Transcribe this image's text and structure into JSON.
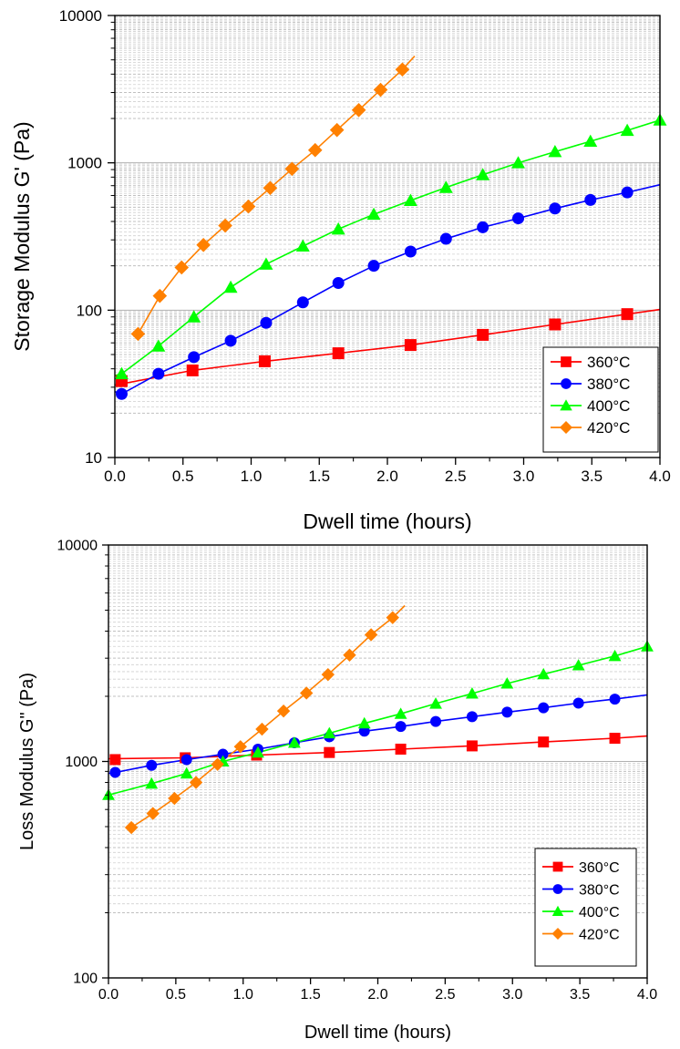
{
  "chart_data": [
    {
      "type": "line",
      "xlabel": "Dwell time (hours)",
      "ylabel": "Storage Modulus G' (Pa)",
      "xlim": [
        0,
        4.0
      ],
      "ylim": [
        10,
        10000
      ],
      "yscale": "log",
      "xticks": [
        "0.0",
        "0.5",
        "1.0",
        "1.5",
        "2.0",
        "2.5",
        "3.0",
        "3.5",
        "4.0"
      ],
      "yticks": [
        "10",
        "100",
        "1000",
        "10000"
      ],
      "grid": "horizontal minor dashed, major solid",
      "legend_position": "bottom-right",
      "series": [
        {
          "name": "360°C",
          "color": "#ff0000",
          "marker": "square",
          "x": [
            0.05,
            0.57,
            1.1,
            1.64,
            2.17,
            2.7,
            3.23,
            3.76
          ],
          "y": [
            33,
            39,
            45,
            51,
            58,
            68,
            80,
            94
          ],
          "line": {
            "x": [
              0.0,
              0.57,
              1.1,
              1.64,
              2.17,
              2.7,
              3.23,
              3.76,
              4.0
            ],
            "y": [
              31,
              39,
              45,
              51,
              58,
              68,
              80,
              94,
              101
            ]
          }
        },
        {
          "name": "380°C",
          "color": "#0000ff",
          "marker": "circle",
          "x": [
            0.05,
            0.32,
            0.58,
            0.85,
            1.11,
            1.38,
            1.64,
            1.9,
            2.17,
            2.43,
            2.7,
            2.96,
            3.23,
            3.49,
            3.76
          ],
          "y": [
            27,
            37,
            48,
            62,
            82,
            113,
            153,
            200,
            250,
            305,
            365,
            420,
            490,
            560,
            630
          ],
          "line": {
            "x": [
              0.0,
              0.05,
              0.32,
              0.58,
              0.85,
              1.11,
              1.38,
              1.64,
              1.9,
              2.17,
              2.43,
              2.7,
              2.96,
              3.23,
              3.49,
              3.76,
              4.0
            ],
            "y": [
              28,
              27,
              37,
              48,
              62,
              82,
              113,
              153,
              200,
              250,
              305,
              365,
              420,
              490,
              560,
              630,
              710
            ]
          }
        },
        {
          "name": "400°C",
          "color": "#00ff00",
          "marker": "triangle",
          "x": [
            0.05,
            0.32,
            0.58,
            0.85,
            1.11,
            1.38,
            1.64,
            1.9,
            2.17,
            2.43,
            2.7,
            2.96,
            3.23,
            3.49,
            3.76,
            4.0
          ],
          "y": [
            37,
            57,
            90,
            143,
            205,
            272,
            355,
            447,
            555,
            680,
            830,
            1000,
            1190,
            1400,
            1660,
            1950
          ],
          "line": {
            "x": [
              0.0,
              0.05,
              0.32,
              0.58,
              0.85,
              1.11,
              1.38,
              1.64,
              1.9,
              2.17,
              2.43,
              2.7,
              2.96,
              3.23,
              3.49,
              3.76,
              4.0
            ],
            "y": [
              36,
              37,
              57,
              90,
              143,
              205,
              272,
              355,
              447,
              555,
              680,
              830,
              1000,
              1190,
              1400,
              1660,
              1950
            ]
          }
        },
        {
          "name": "420°C",
          "color": "#ff8000",
          "marker": "diamond",
          "x": [
            0.17,
            0.33,
            0.49,
            0.65,
            0.81,
            0.98,
            1.14,
            1.3,
            1.47,
            1.63,
            1.79,
            1.95,
            2.11
          ],
          "y": [
            69,
            125,
            195,
            277,
            375,
            505,
            675,
            910,
            1220,
            1670,
            2280,
            3130,
            4300
          ],
          "line": {
            "x": [
              0.17,
              0.33,
              0.49,
              0.65,
              0.81,
              0.98,
              1.14,
              1.3,
              1.47,
              1.63,
              1.79,
              1.95,
              2.11,
              2.2
            ],
            "y": [
              69,
              125,
              195,
              277,
              375,
              505,
              675,
              910,
              1220,
              1670,
              2280,
              3130,
              4300,
              5300
            ]
          }
        }
      ]
    },
    {
      "type": "line",
      "xlabel": "Dwell time (hours)",
      "ylabel": "Loss Modulus G\" (Pa)",
      "xlim": [
        0,
        4.0
      ],
      "ylim": [
        100,
        10000
      ],
      "yscale": "log",
      "xticks": [
        "0.0",
        "0.5",
        "1.0",
        "1.5",
        "2.0",
        "2.5",
        "3.0",
        "3.5",
        "4.0"
      ],
      "yticks": [
        "100",
        "1000",
        "10000"
      ],
      "grid": "horizontal minor dashed, major solid",
      "legend_position": "bottom-right",
      "series": [
        {
          "name": "360°C",
          "color": "#ff0000",
          "marker": "square",
          "x": [
            0.05,
            0.57,
            1.1,
            1.64,
            2.17,
            2.7,
            3.23,
            3.76
          ],
          "y": [
            1020,
            1040,
            1070,
            1100,
            1140,
            1180,
            1230,
            1280
          ],
          "line": {
            "x": [
              0.0,
              0.57,
              1.1,
              1.64,
              2.17,
              2.7,
              3.23,
              3.76,
              4.0
            ],
            "y": [
              1030,
              1040,
              1070,
              1100,
              1140,
              1180,
              1230,
              1280,
              1310
            ]
          }
        },
        {
          "name": "380°C",
          "color": "#0000ff",
          "marker": "circle",
          "x": [
            0.05,
            0.32,
            0.58,
            0.85,
            1.11,
            1.38,
            1.64,
            1.9,
            2.17,
            2.43,
            2.7,
            2.96,
            3.23,
            3.49,
            3.76
          ],
          "y": [
            890,
            960,
            1020,
            1080,
            1140,
            1220,
            1300,
            1380,
            1450,
            1530,
            1610,
            1690,
            1770,
            1860,
            1940
          ],
          "line": {
            "x": [
              0.0,
              0.05,
              0.32,
              0.58,
              0.85,
              1.11,
              1.38,
              1.64,
              1.9,
              2.17,
              2.43,
              2.7,
              2.96,
              3.23,
              3.49,
              3.76,
              4.0
            ],
            "y": [
              880,
              890,
              960,
              1020,
              1080,
              1140,
              1220,
              1300,
              1380,
              1450,
              1530,
              1610,
              1690,
              1770,
              1860,
              1940,
              2030
            ]
          }
        },
        {
          "name": "400°C",
          "color": "#00ff00",
          "marker": "triangle",
          "x": [
            0.0,
            0.32,
            0.58,
            0.85,
            1.11,
            1.38,
            1.64,
            1.9,
            2.17,
            2.43,
            2.7,
            2.96,
            3.23,
            3.49,
            3.76,
            4.0
          ],
          "y": [
            700,
            790,
            880,
            1000,
            1100,
            1220,
            1350,
            1500,
            1660,
            1850,
            2060,
            2290,
            2530,
            2780,
            3070,
            3400
          ],
          "line": {
            "x": [
              0.0,
              0.32,
              0.58,
              0.85,
              1.11,
              1.38,
              1.64,
              1.9,
              2.17,
              2.43,
              2.7,
              2.96,
              3.23,
              3.49,
              3.76,
              4.0
            ],
            "y": [
              700,
              790,
              880,
              1000,
              1100,
              1220,
              1350,
              1500,
              1660,
              1850,
              2060,
              2290,
              2530,
              2780,
              3070,
              3400
            ]
          }
        },
        {
          "name": "420°C",
          "color": "#ff8000",
          "marker": "diamond",
          "x": [
            0.17,
            0.33,
            0.49,
            0.65,
            0.81,
            0.98,
            1.14,
            1.3,
            1.47,
            1.63,
            1.79,
            1.95,
            2.11
          ],
          "y": [
            495,
            575,
            675,
            800,
            970,
            1170,
            1410,
            1710,
            2070,
            2520,
            3100,
            3850,
            4620
          ],
          "line": {
            "x": [
              0.17,
              0.33,
              0.49,
              0.65,
              0.81,
              0.98,
              1.14,
              1.3,
              1.47,
              1.63,
              1.79,
              1.95,
              2.11,
              2.2
            ],
            "y": [
              495,
              575,
              675,
              800,
              970,
              1170,
              1410,
              1710,
              2070,
              2520,
              3100,
              3850,
              4620,
              5250
            ]
          }
        }
      ]
    }
  ]
}
